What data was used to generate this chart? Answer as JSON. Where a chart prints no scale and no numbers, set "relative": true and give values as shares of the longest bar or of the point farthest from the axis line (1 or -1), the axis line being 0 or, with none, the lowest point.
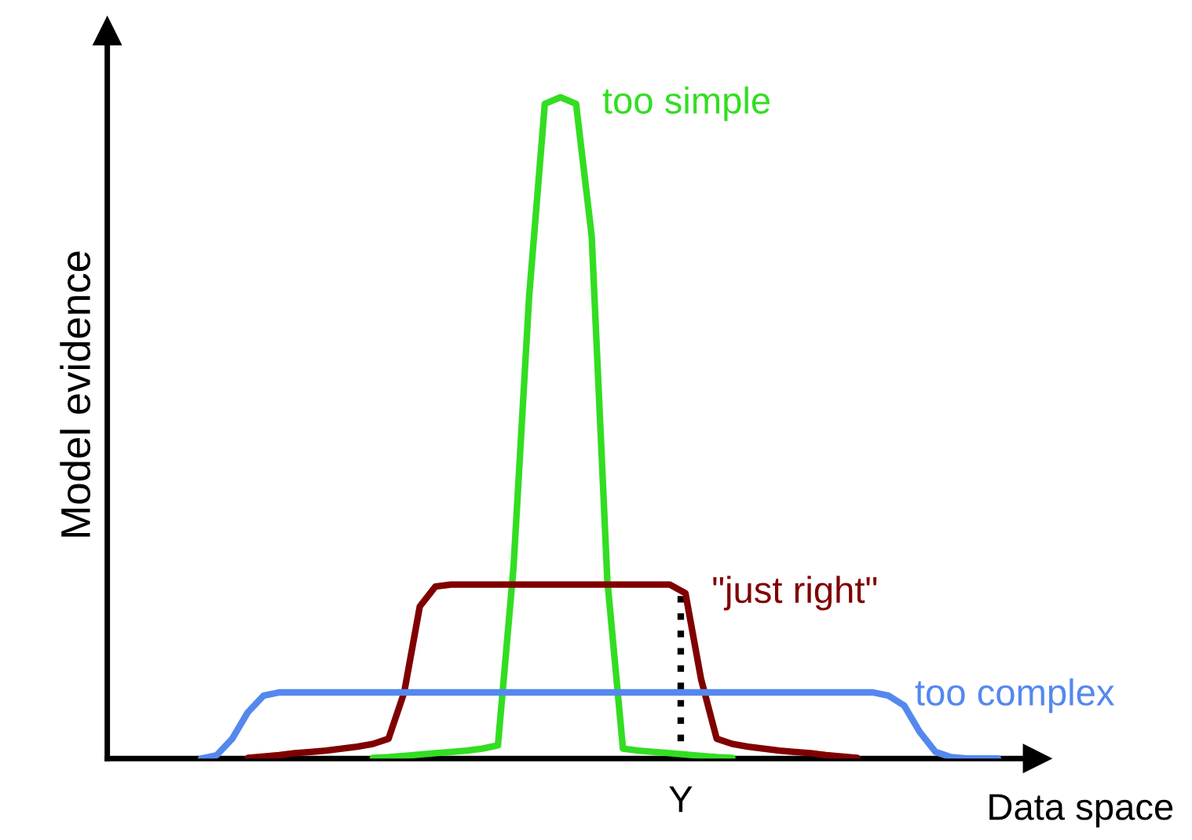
{
  "chart_data": {
    "type": "line",
    "relative": true,
    "xlabel": "Data space",
    "ylabel": "Model evidence",
    "annotations": [
      "Y"
    ],
    "marker": "none",
    "line_style": "solid",
    "categories": [
      null,
      null,
      null,
      null,
      null,
      null,
      null,
      null,
      null,
      null,
      null,
      null,
      null,
      null,
      null,
      null,
      null,
      null,
      null,
      null,
      null,
      null,
      null,
      null,
      null,
      null,
      null,
      null,
      null,
      null,
      null,
      null,
      null,
      null,
      null,
      null,
      null,
      null,
      null,
      null,
      null,
      null,
      null,
      null,
      null,
      null,
      null,
      null,
      null,
      null,
      null,
      null,
      null,
      null,
      null,
      null,
      null,
      null,
      null
    ],
    "series": [
      {
        "name": "too simple",
        "color": "#33dd22",
        "values": [
          null,
          null,
          null,
          null,
          null,
          null,
          null,
          null,
          null,
          null,
          null,
          null,
          null,
          null,
          null,
          null,
          null,
          0.001,
          0.002,
          0.004,
          0.006,
          0.008,
          0.01,
          0.012,
          0.015,
          0.02,
          0.29,
          0.7,
          0.99,
          1.0,
          0.99,
          0.79,
          0.27,
          0.015,
          0.012,
          0.01,
          0.008,
          0.006,
          0.004,
          0.002,
          0.001,
          null,
          null,
          null,
          null,
          null,
          null,
          null,
          null,
          null,
          null,
          null,
          null,
          null,
          null,
          null,
          null,
          null,
          null
        ]
      },
      {
        "name": "\"just right\"",
        "color": "#800000",
        "values": [
          null,
          null,
          null,
          null,
          null,
          null,
          null,
          null,
          null,
          0.001,
          0.003,
          0.005,
          0.008,
          0.01,
          0.012,
          0.015,
          0.018,
          0.022,
          0.03,
          0.1,
          0.23,
          0.26,
          0.263,
          0.263,
          0.263,
          0.263,
          0.263,
          0.263,
          0.263,
          0.263,
          0.263,
          0.263,
          0.263,
          0.263,
          0.263,
          0.263,
          0.263,
          0.25,
          0.12,
          0.03,
          0.022,
          0.018,
          0.015,
          0.012,
          0.01,
          0.008,
          0.005,
          0.003,
          0.001,
          null,
          null,
          null,
          null,
          null,
          null,
          null,
          null,
          null,
          null
        ]
      },
      {
        "name": "too complex",
        "color": "#5588ee",
        "values": [
          null,
          null,
          null,
          null,
          null,
          null,
          0,
          0.005,
          0.03,
          0.07,
          0.095,
          0.1,
          0.1,
          0.1,
          0.1,
          0.1,
          0.1,
          0.1,
          0.1,
          0.1,
          0.1,
          0.1,
          0.1,
          0.1,
          0.1,
          0.1,
          0.1,
          0.1,
          0.1,
          0.1,
          0.1,
          0.1,
          0.1,
          0.1,
          0.1,
          0.1,
          0.1,
          0.1,
          0.1,
          0.1,
          0.1,
          0.1,
          0.1,
          0.1,
          0.1,
          0.1,
          0.1,
          0.1,
          0.1,
          0.1,
          0.095,
          0.08,
          0.04,
          0.01,
          0.002,
          0,
          0,
          0,
          null
        ]
      }
    ]
  }
}
